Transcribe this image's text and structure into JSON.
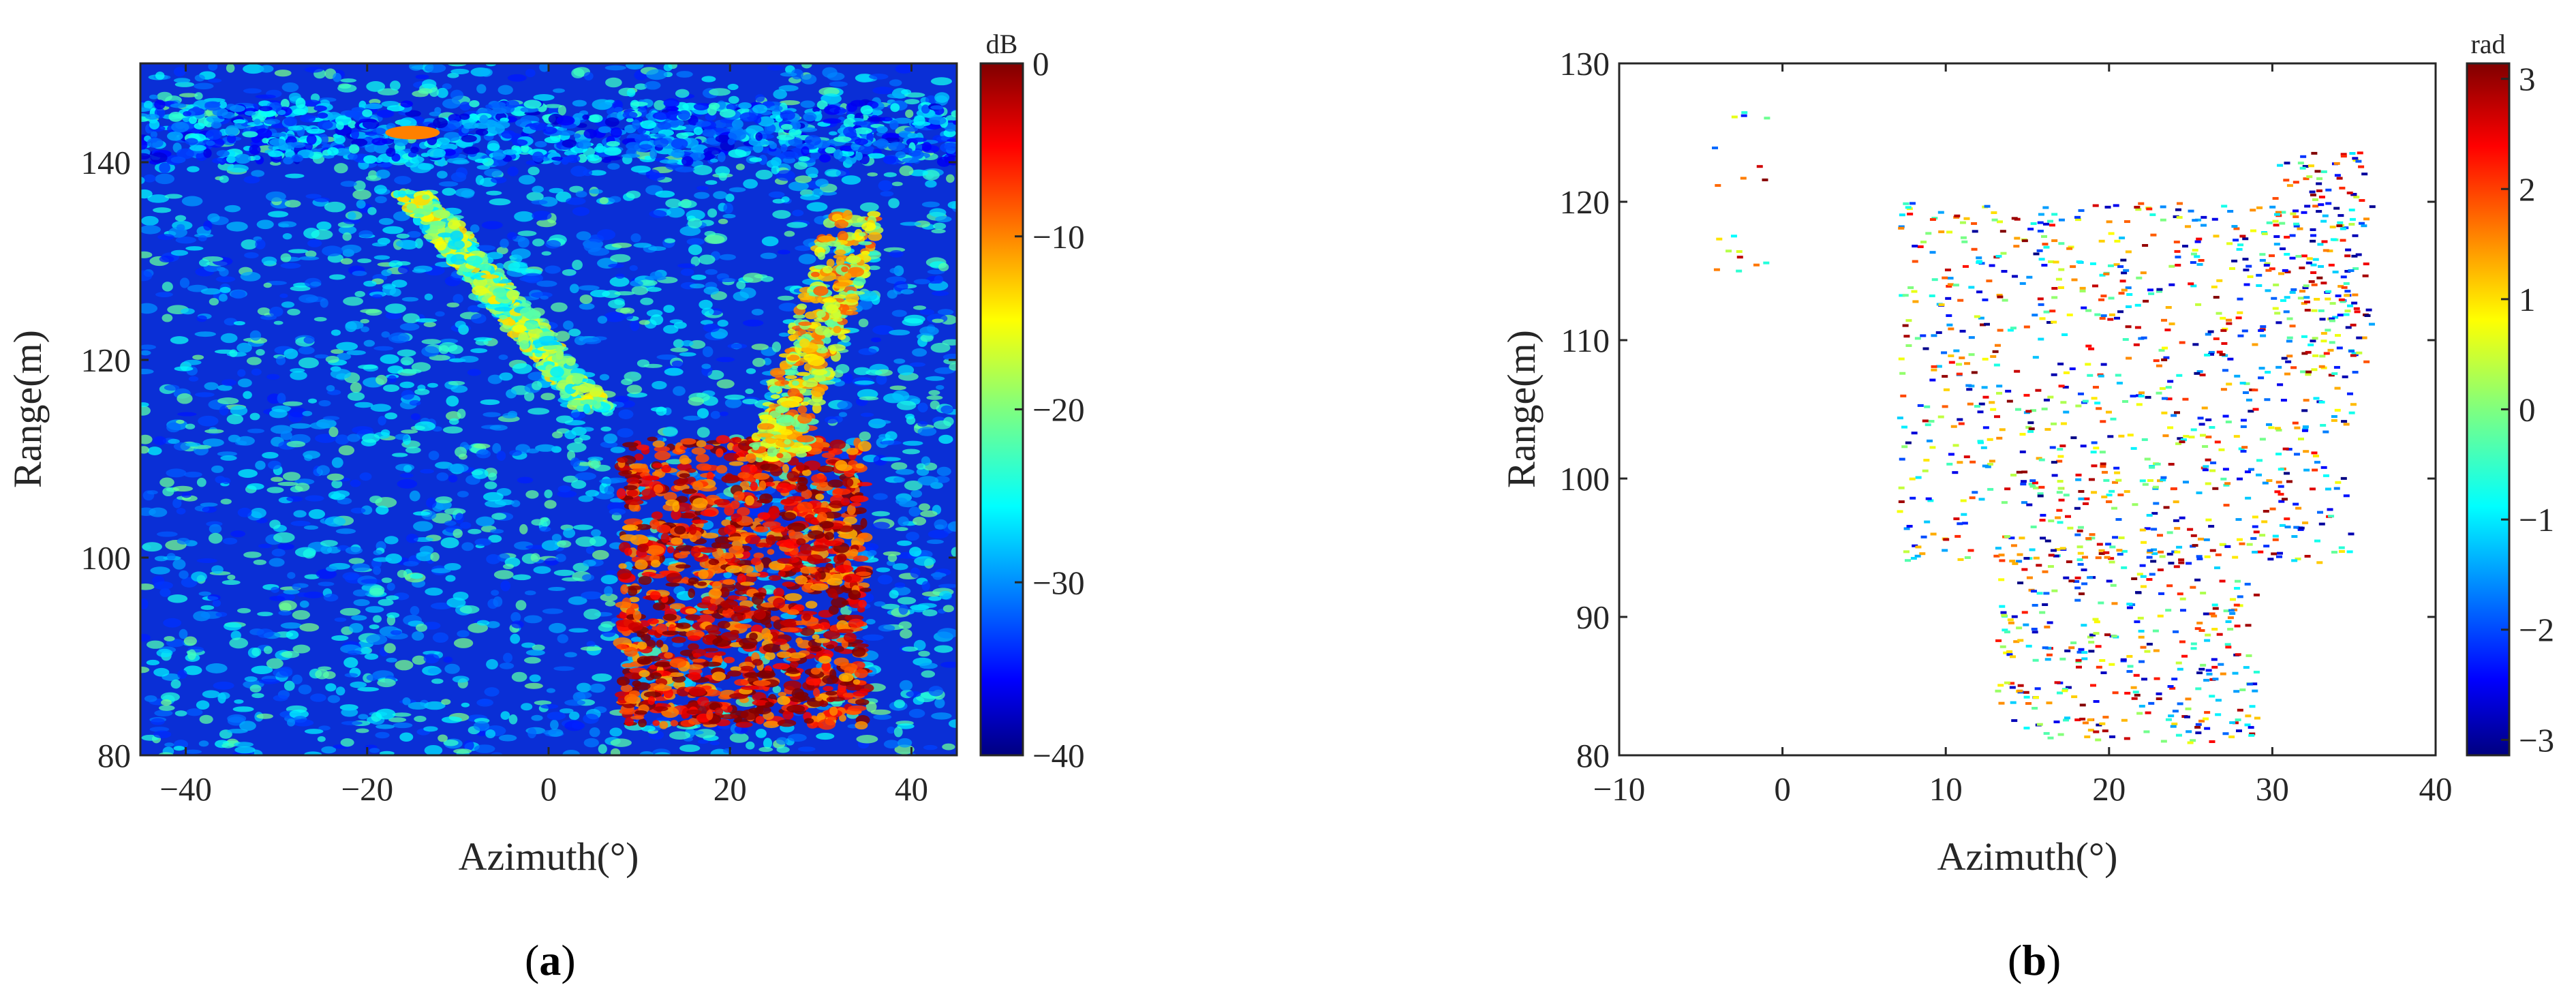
{
  "chart_data": [
    {
      "panel": "(a)",
      "type": "heatmap",
      "xlabel": "Azimuth(°)",
      "ylabel": "Range(m)",
      "xlim": [
        -45,
        45
      ],
      "ylim": [
        80,
        150
      ],
      "xticks": [
        -40,
        -20,
        0,
        20,
        40
      ],
      "yticks": [
        80,
        100,
        120,
        140
      ],
      "colorbar": {
        "label": "dB",
        "range": [
          -40,
          0
        ],
        "ticks": [
          0,
          -10,
          -20,
          -30,
          -40
        ],
        "colormap": "jet"
      },
      "background_level_db": -30,
      "features": [
        {
          "description": "strong scattering region",
          "azimuth_range": [
            8,
            35
          ],
          "range_range": [
            83,
            112
          ],
          "level_db": -5
        },
        {
          "description": "elongated diagonal echo",
          "azimuth_range": [
            25,
            35
          ],
          "range_range": [
            110,
            135
          ],
          "level_db": -15
        },
        {
          "description": "diagonal streak",
          "azimuth_range": [
            -15,
            5
          ],
          "range_range": [
            115,
            137
          ],
          "level_db": -20
        },
        {
          "description": "horizontal clutter band",
          "azimuth_range": [
            -45,
            45
          ],
          "range_range": [
            140,
            146
          ],
          "level_db": -30
        },
        {
          "description": "point echo",
          "azimuth": -15,
          "range": 143,
          "level_db": -10
        }
      ]
    },
    {
      "panel": "(b)",
      "type": "scatter",
      "xlabel": "Azimuth(°)",
      "ylabel": "Range(m)",
      "xlim": [
        -10,
        40
      ],
      "ylim": [
        80,
        130
      ],
      "xticks": [
        -10,
        0,
        10,
        20,
        30,
        40
      ],
      "yticks": [
        80,
        90,
        100,
        110,
        120,
        130
      ],
      "colorbar": {
        "label": "rad",
        "range": [
          -3.14,
          3.14
        ],
        "ticks": [
          3,
          2,
          1,
          0,
          -1,
          -2,
          -3
        ],
        "colormap": "jet"
      },
      "clusters": [
        {
          "description": "upper-left sparse points",
          "azimuth_range": [
            -5,
            -1
          ],
          "range_range": [
            115,
            127
          ]
        },
        {
          "description": "main phase region",
          "azimuth_range": [
            7,
            35
          ],
          "range_range": [
            94,
            120
          ]
        },
        {
          "description": "lower phase region",
          "azimuth_range": [
            13,
            29
          ],
          "range_range": [
            81,
            96
          ]
        },
        {
          "description": "right diagonal edge",
          "azimuth_range": [
            30,
            36
          ],
          "range_range": [
            108,
            124
          ]
        }
      ]
    }
  ]
}
